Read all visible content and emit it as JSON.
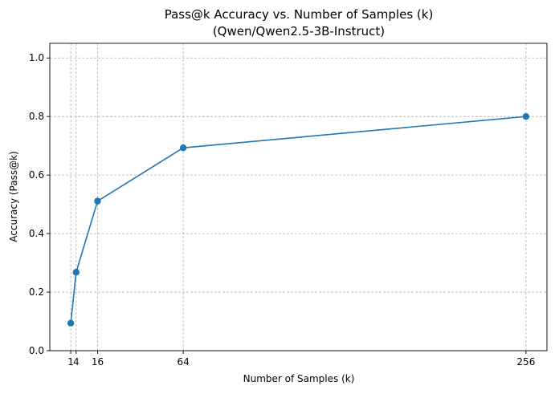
{
  "chart_data": {
    "type": "line",
    "title_line1": "Pass@k Accuracy vs. Number of Samples (k)",
    "title_line2": "(Qwen/Qwen2.5-3B-Instruct)",
    "xlabel": "Number of Samples (k)",
    "ylabel": "Accuracy (Pass@k)",
    "xlim": [
      -10.75,
      267.75
    ],
    "ylim": [
      0.0,
      1.05
    ],
    "x": [
      1,
      4,
      16,
      64,
      256
    ],
    "xticks": [
      1,
      4,
      16,
      64,
      256
    ],
    "xtick_labels": [
      "1",
      "4",
      "16",
      "64",
      "256"
    ],
    "yticks": [
      0.0,
      0.2,
      0.4,
      0.6,
      0.8,
      1.0
    ],
    "ytick_labels": [
      "0.0",
      "0.2",
      "0.4",
      "0.6",
      "0.8",
      "1.0"
    ],
    "series": [
      {
        "values": [
          0.094,
          0.268,
          0.511,
          0.693,
          0.8
        ],
        "color": "#1f77b4",
        "marker": "circle"
      }
    ],
    "grid": true,
    "legend": "none"
  }
}
